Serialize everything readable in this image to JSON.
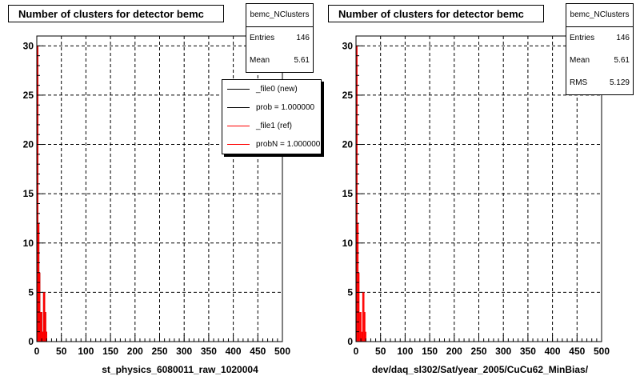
{
  "footer_note": "",
  "pads": [
    {
      "title": "Number of clusters for detector bemc",
      "stats": {
        "name": "bemc_NClusters",
        "rows": [
          {
            "label": "Entries",
            "value": "146"
          },
          {
            "label": "Mean",
            "value": "5.61"
          }
        ]
      },
      "legend": {
        "entries": [
          {
            "label": "_file0 (new)",
            "color": "#000000"
          },
          {
            "label": "prob = 1.000000",
            "color": "#000000"
          },
          {
            "label": "_file1 (ref)",
            "color": "#ff0000"
          },
          {
            "label": "probN = 1.000000",
            "color": "#ff0000"
          }
        ]
      },
      "xaxis_title": "st_physics_6080011_raw_1020004"
    },
    {
      "title": "Number of clusters for detector bemc",
      "stats": {
        "name": "bemc_NClusters",
        "rows": [
          {
            "label": "Entries",
            "value": "146"
          },
          {
            "label": "Mean",
            "value": "5.61"
          },
          {
            "label": "RMS",
            "value": "5.129"
          }
        ]
      },
      "legend": null,
      "xaxis_title": "dev/daq_sl302/Sat/year_2005/CuCu62_MinBias/"
    }
  ],
  "chart_data": [
    {
      "type": "bar",
      "title": "Number of clusters for detector bemc",
      "xlabel": "st_physics_6080011_raw_1020004",
      "ylabel": "",
      "xlim": [
        0,
        500
      ],
      "ylim": [
        0,
        31
      ],
      "grid": true,
      "xticks": [
        0,
        50,
        100,
        150,
        200,
        250,
        300,
        350,
        400,
        450,
        500
      ],
      "yticks": [
        0,
        5,
        10,
        15,
        20,
        25,
        30
      ],
      "bin_width": 2,
      "bin_lows": [
        0,
        2,
        4,
        6,
        8,
        10,
        12,
        14,
        16,
        18,
        20,
        22
      ],
      "series": [
        {
          "name": "_file0 (new)",
          "color": "#000000",
          "values": [
            30,
            12,
            7,
            3,
            3,
            1,
            5,
            5,
            3,
            1,
            0,
            0
          ]
        },
        {
          "name": "_file1 (ref)",
          "color": "#ff0000",
          "values": [
            30,
            12,
            7,
            3,
            3,
            1,
            5,
            5,
            3,
            1,
            0,
            0
          ]
        }
      ]
    },
    {
      "type": "bar",
      "title": "Number of clusters for detector bemc",
      "xlabel": "dev/daq_sl302/Sat/year_2005/CuCu62_MinBias/",
      "ylabel": "",
      "xlim": [
        0,
        500
      ],
      "ylim": [
        0,
        31
      ],
      "grid": true,
      "xticks": [
        0,
        50,
        100,
        150,
        200,
        250,
        300,
        350,
        400,
        450,
        500
      ],
      "yticks": [
        0,
        5,
        10,
        15,
        20,
        25,
        30
      ],
      "bin_width": 2,
      "bin_lows": [
        0,
        2,
        4,
        6,
        8,
        10,
        12,
        14,
        16,
        18,
        20,
        22
      ],
      "series": [
        {
          "name": "",
          "color": "#ff0000",
          "values": [
            30,
            12,
            7,
            3,
            3,
            1,
            5,
            5,
            3,
            1,
            0,
            0
          ]
        }
      ]
    }
  ]
}
